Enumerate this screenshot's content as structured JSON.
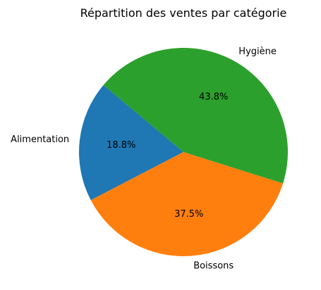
{
  "chart_data": {
    "type": "pie",
    "title": "Répartition des ventes par catégorie",
    "categories": [
      "Alimentation",
      "Boissons",
      "Hygiène"
    ],
    "values": [
      18.75,
      37.5,
      43.75
    ],
    "percent_labels": [
      "18.8%",
      "37.5%",
      "43.8%"
    ],
    "colors": [
      "#1f77b4",
      "#ff7f0e",
      "#2ca02c"
    ],
    "start_angle_deg": 140,
    "direction": "counterclockwise",
    "legend": "none"
  }
}
